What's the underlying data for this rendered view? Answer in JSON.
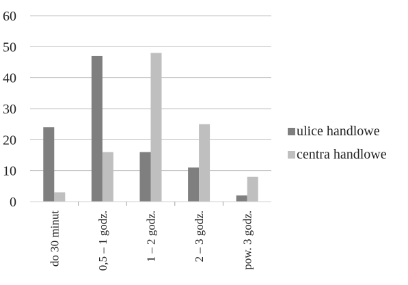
{
  "chart_data": {
    "type": "bar",
    "title": "",
    "xlabel": "",
    "ylabel": "",
    "categories": [
      "do 30 minut",
      "0,5 – 1 godz.",
      "1 – 2 godz.",
      "2 – 3 godz.",
      "pow. 3 godz."
    ],
    "series": [
      {
        "name": "ulice handlowe",
        "values": [
          24,
          47,
          16,
          11,
          2
        ],
        "color": "#7f7f7f"
      },
      {
        "name": "centra handlowe",
        "values": [
          3,
          16,
          48,
          25,
          8
        ],
        "color": "#bfbfbf"
      }
    ],
    "ylim": [
      0,
      60
    ],
    "yticks": [
      "0",
      "10",
      "20",
      "30",
      "40",
      "50",
      "60"
    ],
    "grid": true,
    "legend_position": "right"
  }
}
